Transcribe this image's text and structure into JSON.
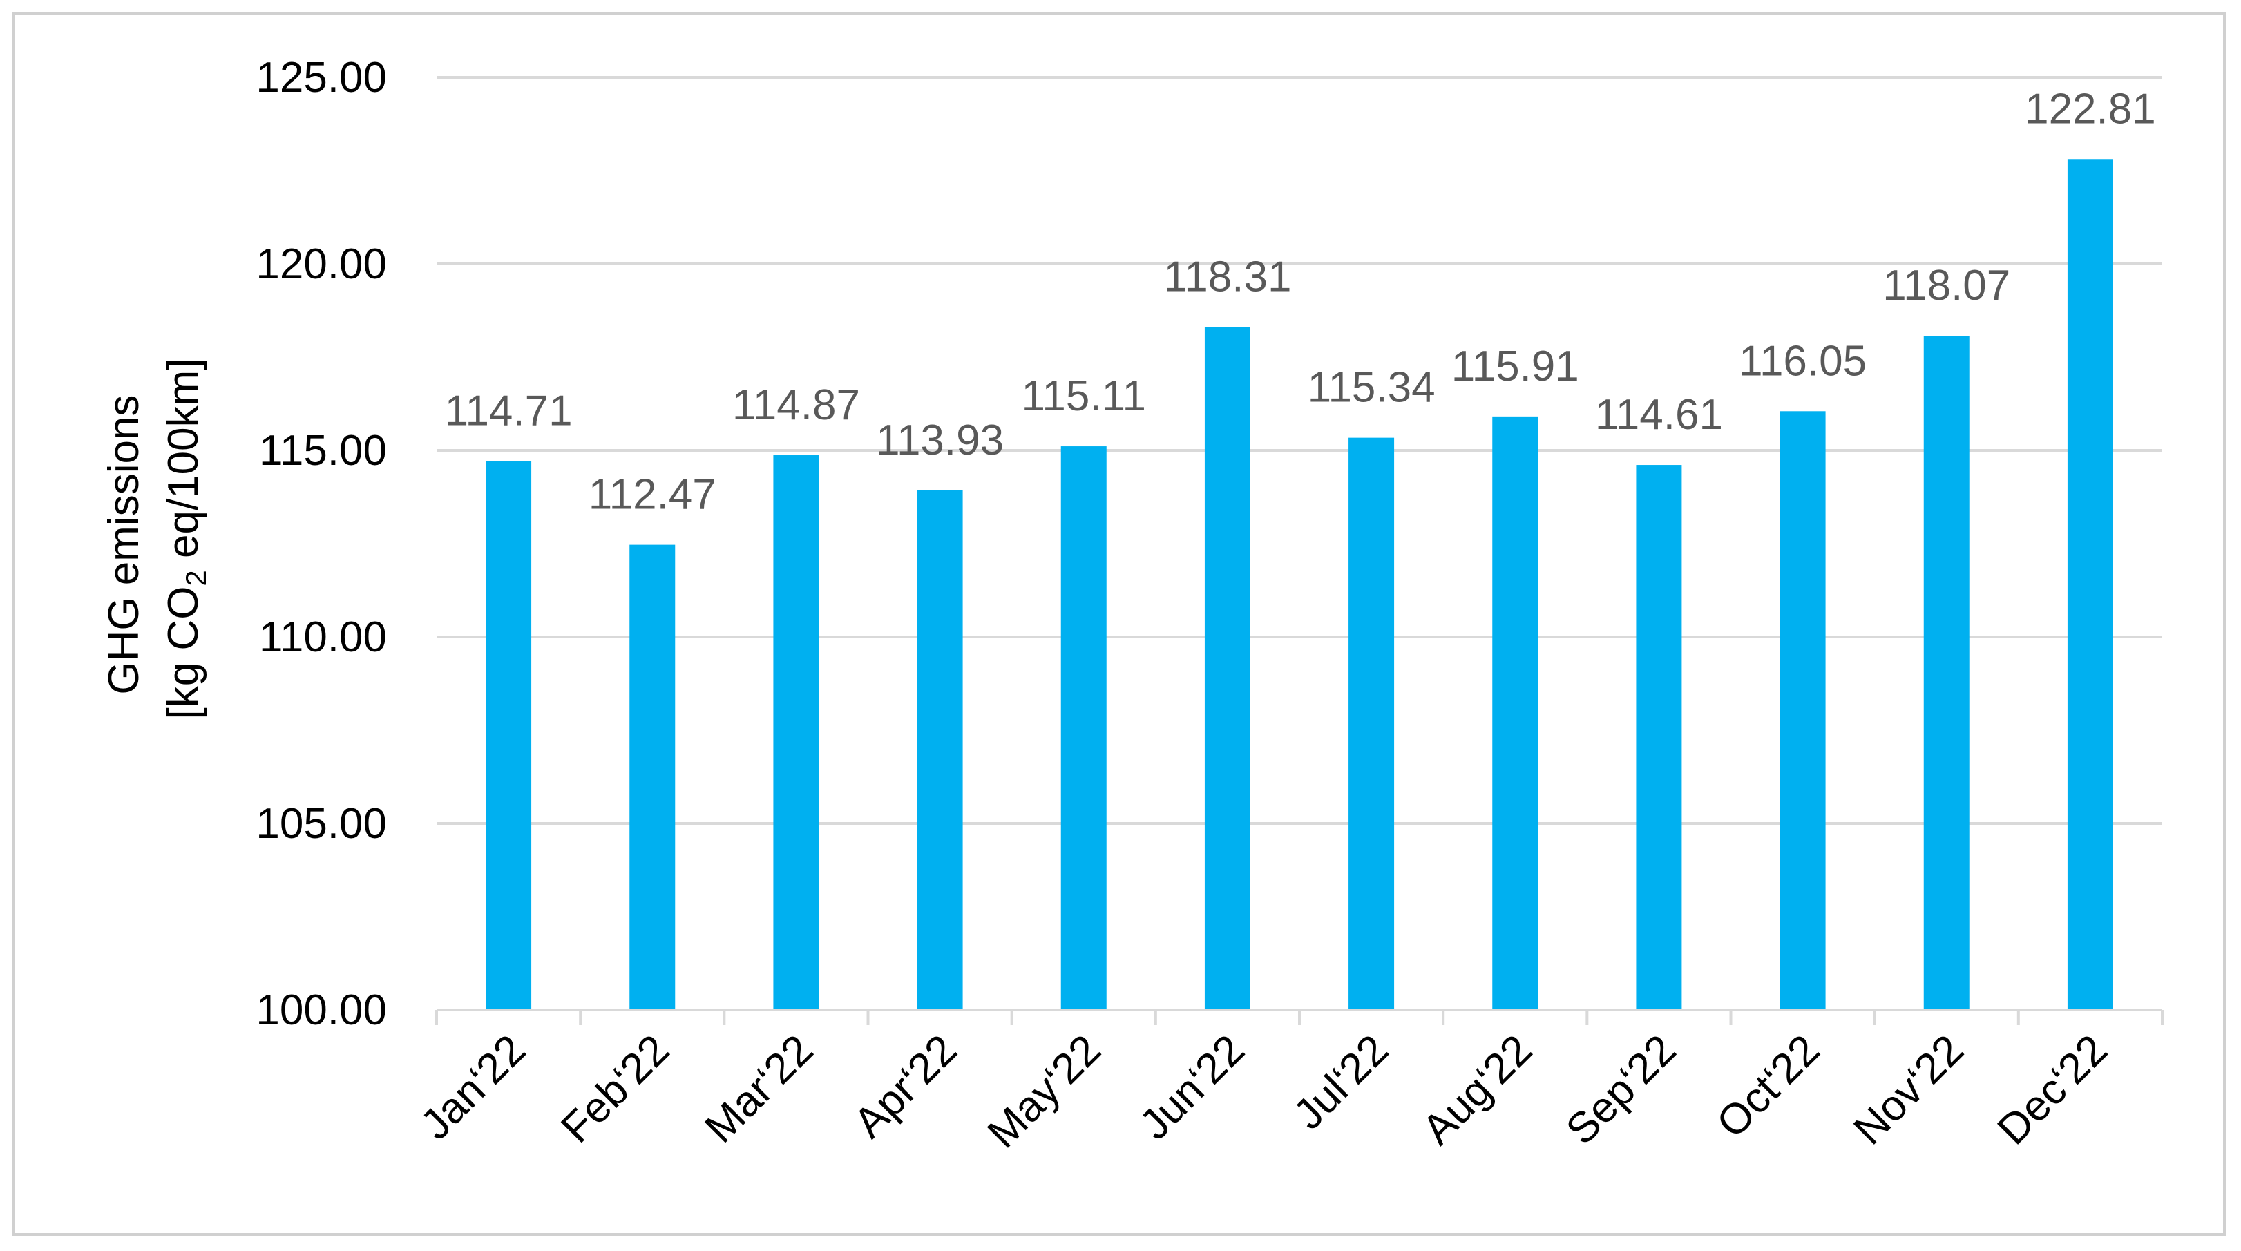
{
  "chart_data": {
    "type": "bar",
    "title": "",
    "xlabel": "",
    "ylabel_line1": "GHG emissions",
    "ylabel_line2_prefix": "[kg CO",
    "ylabel_line2_sub": "2",
    "ylabel_line2_suffix": " eq/100km]",
    "categories": [
      "Jan‘22",
      "Feb‘22",
      "Mar‘22",
      "Apr‘22",
      "May‘22",
      "Jun‘22",
      "Jul‘22",
      "Aug‘22",
      "Sep‘22",
      "Oct‘22",
      "Nov‘22",
      "Dec‘22"
    ],
    "values": [
      114.71,
      112.47,
      114.87,
      113.93,
      115.11,
      118.31,
      115.34,
      115.91,
      114.61,
      116.05,
      118.07,
      122.81
    ],
    "value_labels": [
      "114.71",
      "112.47",
      "114.87",
      "113.93",
      "115.11",
      "118.31",
      "115.34",
      "115.91",
      "114.61",
      "116.05",
      "118.07",
      "122.81"
    ],
    "ylim": [
      100,
      125
    ],
    "yticks": [
      100,
      105,
      110,
      115,
      120,
      125
    ],
    "ytick_labels": [
      "100.00",
      "105.00",
      "110.00",
      "115.00",
      "120.00",
      "125.00"
    ],
    "grid": true,
    "legend": "none",
    "bar_color": "#00b0f0",
    "grid_color": "#d9d9d9",
    "axis_color": "#d9d9d9"
  }
}
